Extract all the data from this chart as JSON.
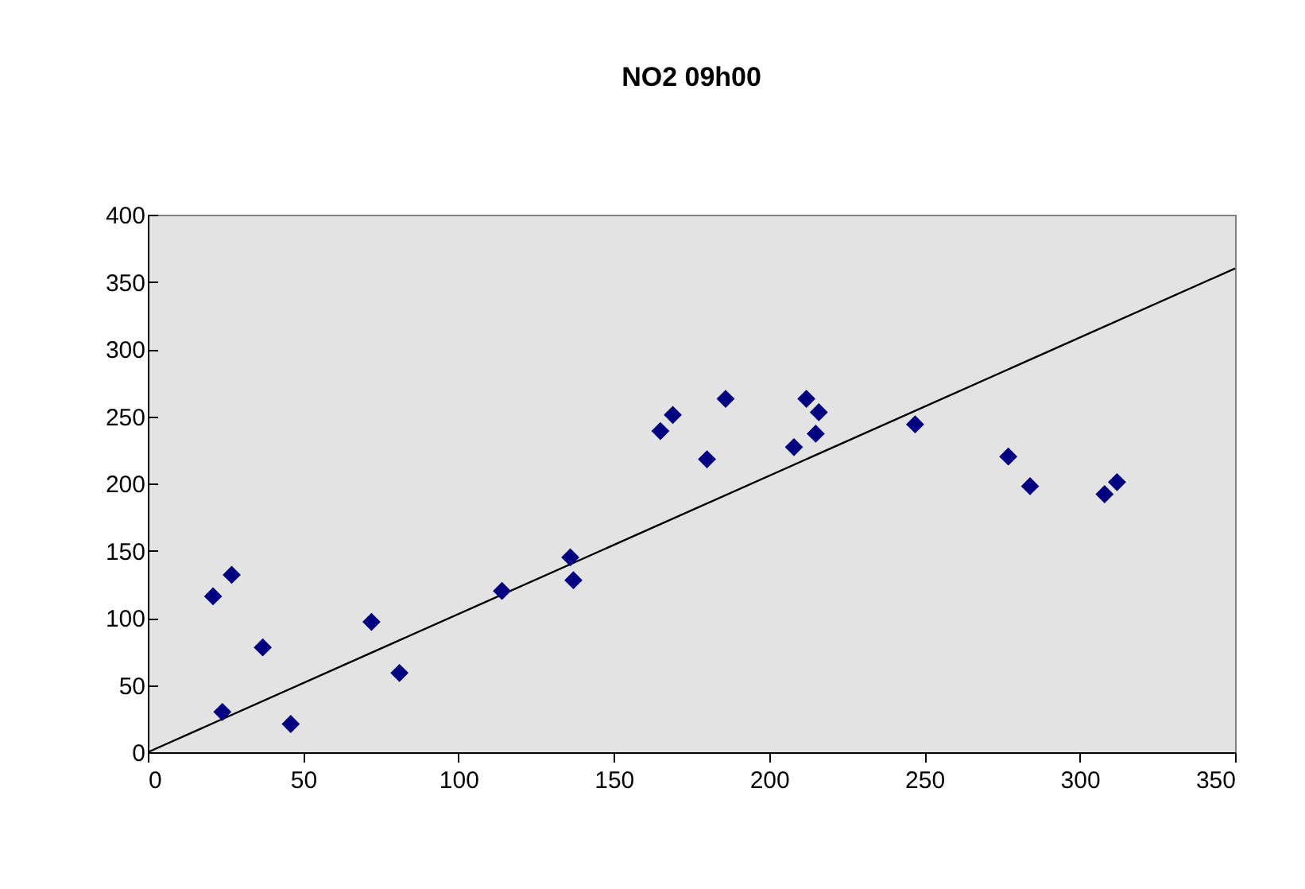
{
  "chart_data": {
    "type": "scatter",
    "title": "NO2 09h00",
    "grid": false,
    "xlim": [
      0,
      350
    ],
    "xticks": [
      0,
      50,
      100,
      150,
      200,
      250,
      300,
      350
    ],
    "ylim": [
      0,
      400
    ],
    "yticks": [
      0,
      50,
      100,
      150,
      200,
      250,
      300,
      350,
      400
    ],
    "series": [
      {
        "marker": "diamond",
        "color": "#000080",
        "x": [
          21,
          27,
          37,
          24,
          46,
          72,
          81,
          114,
          136,
          137,
          165,
          169,
          180,
          186,
          208,
          212,
          216,
          215,
          247,
          277,
          284,
          308,
          312
        ],
        "values": [
          116,
          132,
          78,
          30,
          21,
          97,
          59,
          120,
          145,
          128,
          239,
          251,
          218,
          263,
          227,
          263,
          253,
          237,
          244,
          220,
          198,
          192,
          201
        ]
      },
      {
        "type": "line",
        "marker": "none",
        "color": "#000000",
        "x": [
          0,
          350
        ],
        "values": [
          0,
          360
        ]
      }
    ]
  }
}
